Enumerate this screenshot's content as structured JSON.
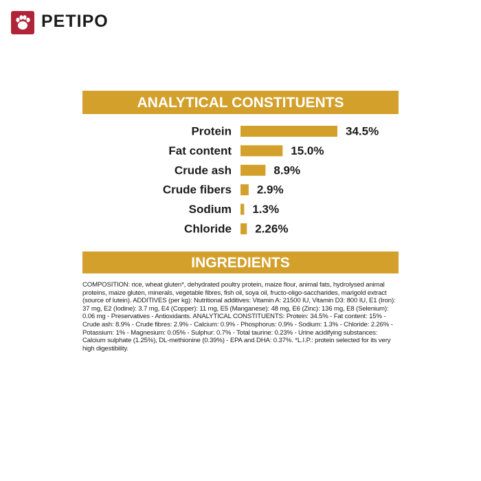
{
  "logo": {
    "text": "PETIPO"
  },
  "chart_data": {
    "type": "hbar",
    "title": "ANALYTICAL CONSTITUENTS",
    "categories": [
      "Protein",
      "Fat content",
      "Crude ash",
      "Crude fibers",
      "Sodium",
      "Chloride"
    ],
    "values": [
      34.5,
      15.0,
      8.9,
      2.9,
      1.3,
      2.26
    ],
    "value_labels": [
      "34.5%",
      "15.0%",
      "8.9%",
      "2.9%",
      "1.3%",
      "2.26%"
    ],
    "color": "#d3a02b"
  },
  "ingredients": {
    "title": "INGREDIENTS",
    "text": "COMPOSITION: rice, wheat gluten*, dehydrated poultry protein, maize flour, animal fats, hydrolysed animal proteins, maize gluten, minerals, vegetable fibres, fish oil, soya oil, fructo-oligo-saccharides, marigold extract (source of lutein). ADDITIVES (per kg): Nutritional additives: Vitamin A: 21500 IU, Vitamin D3: 800 IU, E1 (Iron): 37 mg, E2 (Iodine): 3.7 mg, E4 (Copper): 11 mg, E5 (Manganese): 48 mg, E6 (Zinc): 136 mg, E8 (Selenium): 0.06 mg - Preservatives - Antioxidants. ANALYTICAL CONSTITUENTS: Protein: 34.5% - Fat content: 15% - Crude ash: 8.9% - Crude fibres: 2.9% - Calcium: 0.9% - Phosphorus: 0.9% - Sodium: 1.3% - Chloride: 2.26% - Potassium: 1% - Magnesium: 0.05% - Sulphur: 0.7% - Total taurine: 0.23% - Urine acidifying substances: Calcium sulphate (1.25%), DL-methionine (0.39%) - EPA and DHA: 0.37%. *L.I.P.: protein selected for its very high digestibility."
  }
}
